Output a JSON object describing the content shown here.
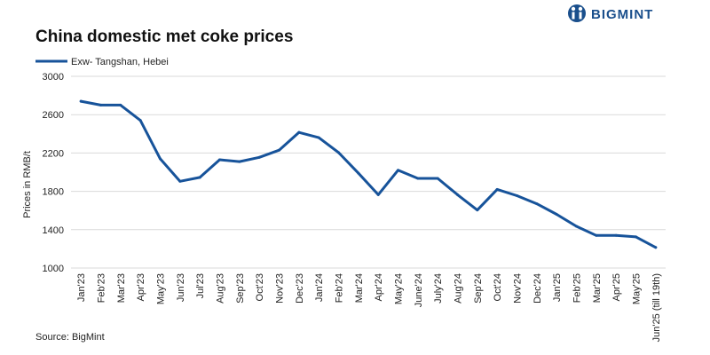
{
  "brand": {
    "name": "BIGMINT",
    "color": "#1a4f8c",
    "icon": "bigmint-logo-icon"
  },
  "source": "Source: BigMint",
  "chart_data": {
    "type": "line",
    "title": "China domestic met coke prices",
    "ylabel": "Prices in RMB/t",
    "xlabel": "",
    "ylim": [
      1000,
      3000
    ],
    "yticks": [
      1000,
      1400,
      1800,
      2200,
      2600,
      3000
    ],
    "grid": true,
    "legend_position": "top-left",
    "categories": [
      "Jan'23",
      "Feb'23",
      "Mar'23",
      "Apr'23",
      "May'23",
      "Jun'23",
      "Jul'23",
      "Aug'23",
      "Sep'23",
      "Oct'23",
      "Nov'23",
      "Dec'23",
      "Jan'24",
      "Feb'24",
      "Mar'24",
      "Apr'24",
      "May'24",
      "June'24",
      "July'24",
      "Aug'24",
      "Sep'24",
      "Oct'24",
      "Nov'24",
      "Dec'24",
      "Jan'25",
      "Feb'25",
      "Mar'25",
      "Apr'25",
      "May'25",
      "Jun'25 (till 19th)"
    ],
    "series": [
      {
        "name": "Exw- Tangshan, Hebei",
        "color": "#17539a",
        "values": [
          2740,
          2700,
          2700,
          2540,
          2140,
          1905,
          1945,
          2130,
          2110,
          2155,
          2230,
          2415,
          2360,
          2205,
          1990,
          1765,
          2020,
          1935,
          1935,
          1765,
          1605,
          1820,
          1755,
          1670,
          1560,
          1435,
          1340,
          1340,
          1325,
          1215
        ]
      }
    ]
  }
}
